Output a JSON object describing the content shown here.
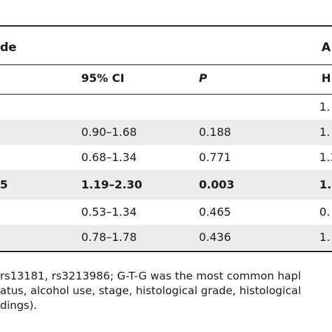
{
  "group_labels": {
    "left": "de",
    "right": "A"
  },
  "columns": {
    "ci": "95% CI",
    "p": "P",
    "right_hr": "H"
  },
  "rows": [
    {
      "lead": "",
      "ci": "",
      "p": "",
      "right": "1.",
      "bold": false,
      "shaded": false
    },
    {
      "lead": "",
      "ci": "0.90–1.68",
      "p": "0.188",
      "right": "1.",
      "bold": false,
      "shaded": true
    },
    {
      "lead": "",
      "ci": "0.68–1.34",
      "p": "0.771",
      "right": "1.3",
      "bold": false,
      "shaded": false
    },
    {
      "lead": "5",
      "ci": "1.19–2.30",
      "p": "0.003",
      "right": "1.",
      "bold": true,
      "shaded": true
    },
    {
      "lead": "",
      "ci": "0.53–1.34",
      "p": "0.465",
      "right": "0.",
      "bold": false,
      "shaded": false
    },
    {
      "lead": "",
      "ci": "0.78–1.78",
      "p": "0.436",
      "right": "1.",
      "bold": false,
      "shaded": true
    }
  ],
  "footnotes": [
    "rs13181, rs3213986; G-T-G was the most common hapl",
    "atus, alcohol use, stage, histological grade, histological",
    "dings)."
  ]
}
